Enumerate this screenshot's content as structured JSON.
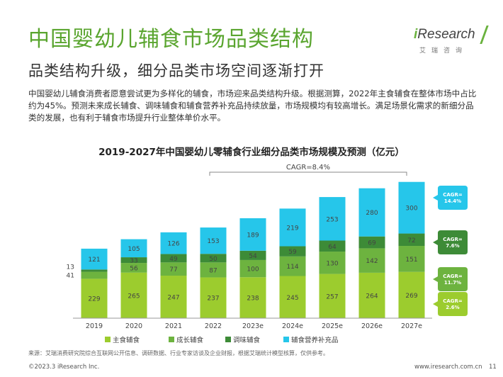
{
  "header": {
    "title": "中国婴幼儿辅食市场品类结构",
    "subtitle": "品类结构升级，细分品类市场空间逐渐打开",
    "logo_text": "iResearch",
    "logo_sub": "艾瑞咨询"
  },
  "intro": "中国婴幼儿辅食消费者愿意尝试更为多样化的辅食，市场迎来品类结构升级。根据测算，2022年主食辅食在整体市场中占比约为45%。预测未来成长辅食、调味辅食和辅食营养补充品持续放量，市场规模均有较高增长。满足场景化需求的新细分品类的发展，也有利于辅食市场提升行业整体单价水平。",
  "colors": {
    "brand_green": "#5aa52f",
    "main": "#9ccc2e",
    "growth": "#6db33f",
    "seasoning": "#3d8b37",
    "nutrition": "#26c6ea"
  },
  "chart_data": {
    "type": "bar",
    "stacked": true,
    "title": "2019-2027年中国婴幼儿零辅食行业细分品类市场规模及预测（亿元）",
    "categories": [
      "2019",
      "2020",
      "2021",
      "2022",
      "2023e",
      "2024e",
      "2025e",
      "2026e",
      "2027e"
    ],
    "series": [
      {
        "name": "主食辅食",
        "values": [
          229,
          265,
          247,
          237,
          238,
          245,
          257,
          264,
          269
        ],
        "color": "#9ccc2e"
      },
      {
        "name": "成长辅食",
        "values": [
          41,
          56,
          77,
          87,
          100,
          114,
          130,
          142,
          151
        ],
        "color": "#6db33f"
      },
      {
        "name": "调味辅食",
        "values": [
          13,
          33,
          49,
          50,
          54,
          59,
          64,
          69,
          72
        ],
        "color": "#3d8b37"
      },
      {
        "name": "辅食营养补充品",
        "values": [
          121,
          105,
          126,
          153,
          189,
          219,
          253,
          280,
          300
        ],
        "color": "#26c6ea"
      }
    ],
    "cagr_total": "CAGR=8.4%",
    "cagr_series": [
      "CAGR=\n14.4%",
      "CAGR=\n7.6%",
      "CAGR=\n11.7%",
      "CAGR=\n2.6%"
    ],
    "legend_position": "bottom",
    "grid": false
  },
  "footer": {
    "source": "来源：艾瑞消费研究院综合互联网公开信息、调研数据、行业专家访谈及企业财报，根据艾瑞统计模型核算，仅供参考。",
    "copyright": "©2023.3 iResearch Inc.",
    "website": "www.iresearch.com.cn",
    "page": "11"
  }
}
